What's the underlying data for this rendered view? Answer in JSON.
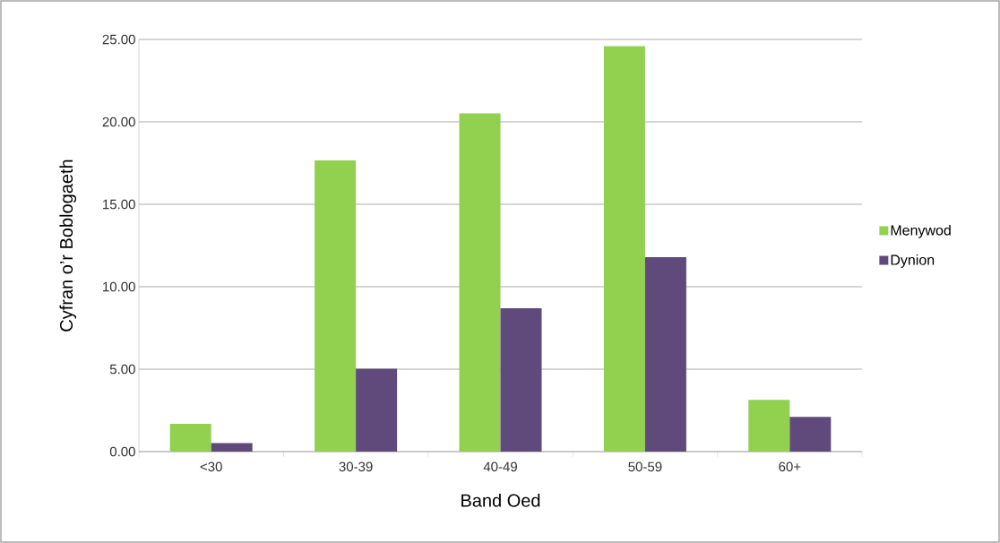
{
  "chart_data": {
    "type": "bar",
    "xlabel": "Band Oed",
    "ylabel": "Cyfran o’r Boblogaeth",
    "categories": [
      "<30",
      "30-39",
      "40-49",
      "50-59",
      "60+"
    ],
    "series": [
      {
        "name": "Menywod",
        "color": "#92d050",
        "values": [
          1.69,
          17.66,
          20.51,
          24.59,
          3.14
        ]
      },
      {
        "name": "Dynion",
        "color": "#604a7b",
        "values": [
          0.52,
          5.03,
          8.7,
          11.79,
          2.1
        ]
      }
    ],
    "ylim": [
      0,
      25
    ],
    "yticks": [
      {
        "value": 0,
        "label": "0.00"
      },
      {
        "value": 5,
        "label": "5.00"
      },
      {
        "value": 10,
        "label": "10.00"
      },
      {
        "value": 15,
        "label": "15.00"
      },
      {
        "value": 20,
        "label": "20.00"
      },
      {
        "value": 25,
        "label": "25.00"
      }
    ],
    "grid": "y",
    "legend": "right"
  }
}
